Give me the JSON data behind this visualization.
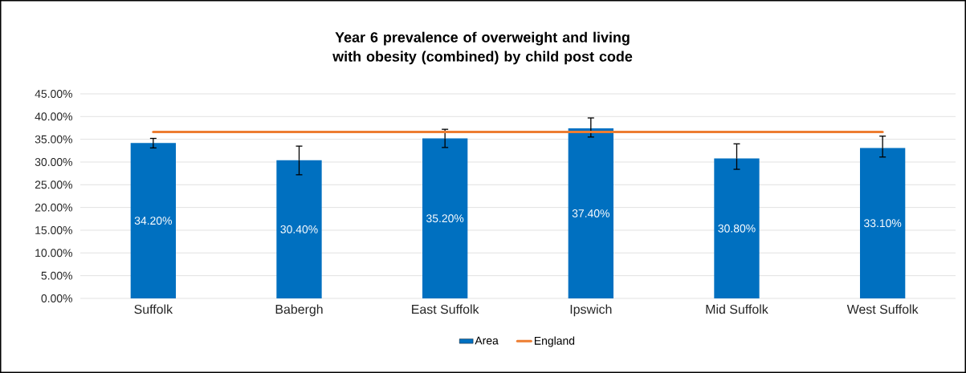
{
  "chart_data": {
    "type": "bar",
    "title": "Year 6 prevalence of overweight and living with obesity (combined) by child post code",
    "categories": [
      "Suffolk",
      "Babergh",
      "East Suffolk",
      "Ipswich",
      "Mid Suffolk",
      "West Suffolk"
    ],
    "series": [
      {
        "name": "Area",
        "color": "#0070c0",
        "values": [
          34.2,
          30.4,
          35.2,
          37.4,
          30.8,
          33.1
        ],
        "errors": [
          [
            33.1,
            35.2
          ],
          [
            27.2,
            33.5
          ],
          [
            33.2,
            37.2
          ],
          [
            35.5,
            39.7
          ],
          [
            28.4,
            34.0
          ],
          [
            31.1,
            35.7
          ]
        ],
        "value_labels": [
          "34.20%",
          "30.40%",
          "35.20%",
          "37.40%",
          "30.80%",
          "33.10%"
        ]
      },
      {
        "name": "England",
        "type": "line",
        "color": "#ed7d31",
        "values": [
          36.6,
          36.6,
          36.6,
          36.6,
          36.6,
          36.6
        ]
      }
    ],
    "ylim": [
      0,
      45
    ],
    "yticks": [
      {
        "value": 0,
        "label": "0.00%"
      },
      {
        "value": 5,
        "label": "5.00%"
      },
      {
        "value": 10,
        "label": "10.00%"
      },
      {
        "value": 15,
        "label": "15.00%"
      },
      {
        "value": 20,
        "label": "20.00%"
      },
      {
        "value": 25,
        "label": "25.00%"
      },
      {
        "value": 30,
        "label": "30.00%"
      },
      {
        "value": 35,
        "label": "35.00%"
      },
      {
        "value": 40,
        "label": "40.00%"
      },
      {
        "value": 45,
        "label": "45.00%"
      }
    ],
    "grid": "y",
    "legend": "bottom"
  }
}
